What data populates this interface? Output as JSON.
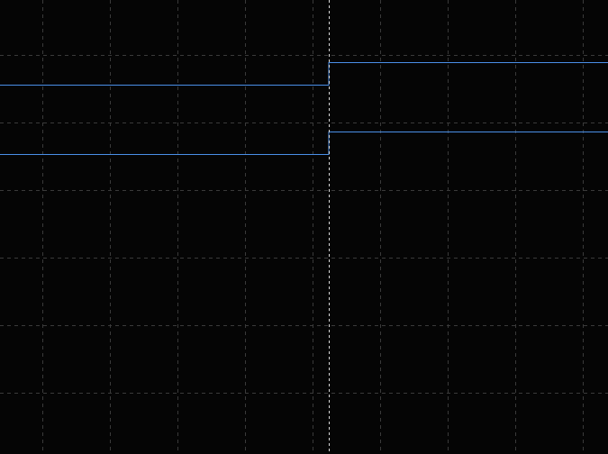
{
  "display": {
    "background": "#050505",
    "grid": {
      "visible": true,
      "color": "#3a3a3a",
      "style": "dashed"
    },
    "cursor": {
      "visible": true,
      "color": "#d8d8d8",
      "style": "dashed"
    },
    "traces": [
      {
        "color": "#4a8fe7",
        "level_before_cursor": "low",
        "level_after_cursor": "high",
        "transition": "step-up-at-cursor"
      },
      {
        "color": "#4a8fe7",
        "level_before_cursor": "low",
        "level_after_cursor": "high",
        "transition": "step-up-at-cursor"
      }
    ]
  }
}
